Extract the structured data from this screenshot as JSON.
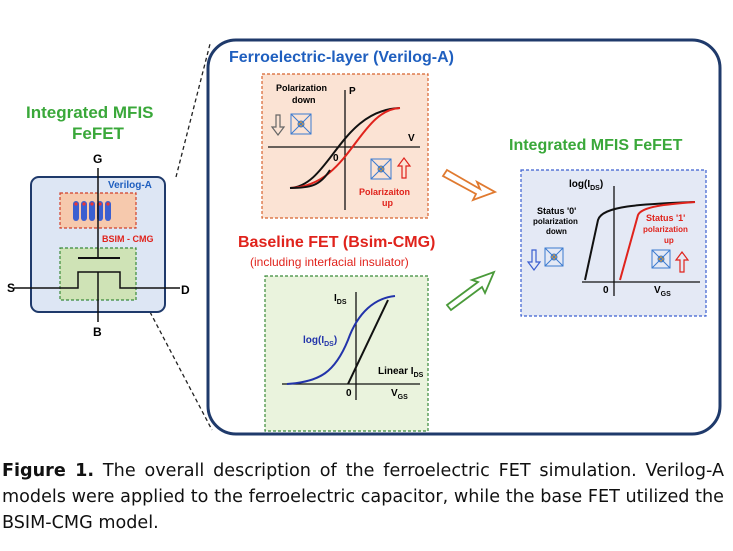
{
  "left_device": {
    "title_line1": "Integrated MFIS",
    "title_line2": "FeFET",
    "terminal_g": "G",
    "terminal_s": "S",
    "terminal_d": "D",
    "terminal_b": "B",
    "verilog_label": "Verilog-A",
    "bsim_label": "BSIM - CMG"
  },
  "ferro_panel": {
    "title": "Ferroelectric-layer (Verilog-A)",
    "pol_down_line1": "Polarization",
    "pol_down_line2": "down",
    "axis_p": "P",
    "axis_v": "V",
    "origin": "0",
    "pol_up_line1": "Polarizaiton",
    "pol_up_line2": "up"
  },
  "baseline_panel": {
    "title": "Baseline FET (Bsim-CMG)",
    "subtitle": "(including interfacial insulator)",
    "ids_label": "I",
    "ids_sub": "DS",
    "logids_label": "log(I",
    "logids_sub": "DS",
    "logids_end": ")",
    "linear_label": "Linear I",
    "linear_sub": "DS",
    "vgs_label": "V",
    "vgs_sub": "GS",
    "origin": "0"
  },
  "mfis_panel": {
    "title": "Integrated MFIS FeFET",
    "logids_label": "log(I",
    "logids_sub": "DS",
    "logids_end": ")",
    "status0_line1": "Status '0'",
    "status0_line2": "polarization",
    "status0_line3": "down",
    "status1_line1": "Status '1'",
    "status1_line2": "polarization",
    "status1_line3": "up",
    "vgs_label": "V",
    "vgs_sub": "GS",
    "origin": "0"
  },
  "caption": {
    "label": "Figure 1.",
    "text": " The overall description of the ferroelectric FET simulation. Verilog-A models were applied to the ferroelectric capacitor, while the base FET utilized the BSIM-CMG model."
  },
  "colors": {
    "green_title": "#3aa83a",
    "blue_title": "#1f5fbf",
    "red_title": "#e0231c",
    "panel_border": "#1f3a6b",
    "ferro_fill": "#fbe3d4",
    "fet_fill": "#eaf3dd",
    "mfis_fill": "#e4e9f5"
  }
}
